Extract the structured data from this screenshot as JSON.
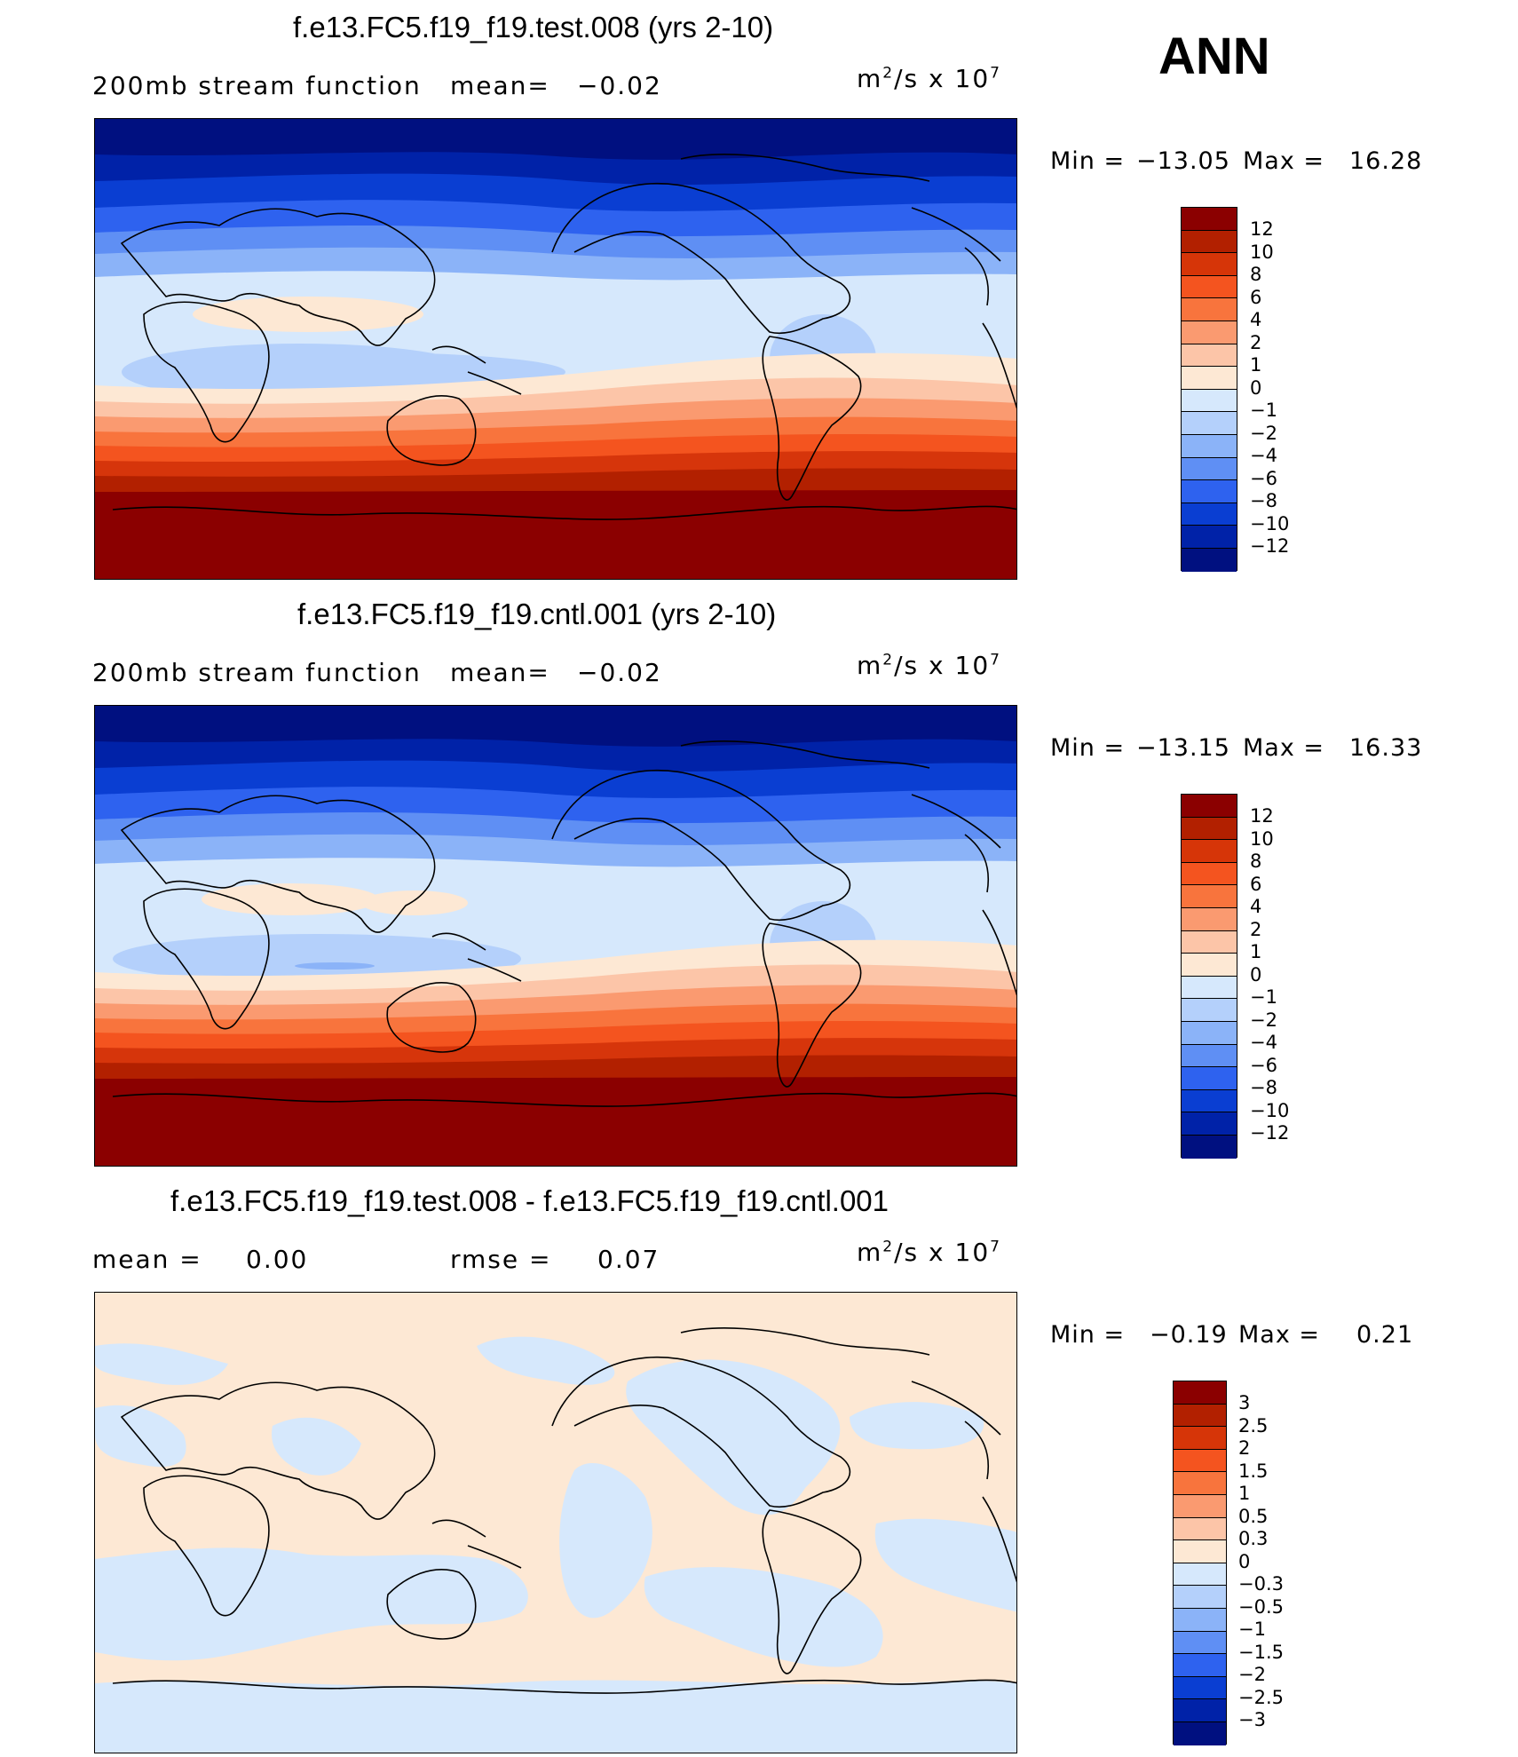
{
  "season": "ANN",
  "units_base": "m",
  "units_mid": "/s  x  10",
  "panels": [
    {
      "title": "f.e13.FC5.f19_f19.test.008 (yrs 2-10)",
      "left_label": "200mb  stream  function",
      "mean_label": "mean=",
      "mean_value": "−0.02",
      "min_label": "Min  =",
      "min_value": "−13.05",
      "max_label": "Max  =",
      "max_value": "16.28",
      "colorbar_labels": [
        "12",
        "10",
        "8",
        "6",
        "4",
        "2",
        "1",
        "0",
        "−1",
        "−2",
        "−4",
        "−6",
        "−8",
        "−10",
        "−12"
      ]
    },
    {
      "title": "f.e13.FC5.f19_f19.cntl.001 (yrs 2-10)",
      "left_label": "200mb  stream  function",
      "mean_label": "mean=",
      "mean_value": "−0.02",
      "min_label": "Min  =",
      "min_value": "−13.15",
      "max_label": "Max  =",
      "max_value": "16.33",
      "colorbar_labels": [
        "12",
        "10",
        "8",
        "6",
        "4",
        "2",
        "1",
        "0",
        "−1",
        "−2",
        "−4",
        "−6",
        "−8",
        "−10",
        "−12"
      ]
    },
    {
      "title": "f.e13.FC5.f19_f19.test.008 - f.e13.FC5.f19_f19.cntl.001",
      "mean_label": "mean  =",
      "mean_value": "0.00",
      "rmse_label": "rmse  =",
      "rmse_value": "0.07",
      "min_label": "Min  =",
      "min_value": "−0.19",
      "max_label": "Max  =",
      "max_value": "0.21",
      "colorbar_labels": [
        "3",
        "2.5",
        "2",
        "1.5",
        "1",
        "0.5",
        "0.3",
        "0",
        "−0.3",
        "−0.5",
        "−1",
        "−1.5",
        "−2",
        "−2.5",
        "−3"
      ]
    }
  ],
  "colors": {
    "scale": [
      "#8b0000",
      "#b22000",
      "#d63508",
      "#f4541f",
      "#f8743d",
      "#fa9a70",
      "#fcc5a8",
      "#fde8d4",
      "#d6e8fc",
      "#b4d0fb",
      "#8bb3f8",
      "#5f8ff4",
      "#2e62ef",
      "#0a3ed2",
      "#0022a8",
      "#001080"
    ],
    "sea_land_outline": "#000000"
  }
}
